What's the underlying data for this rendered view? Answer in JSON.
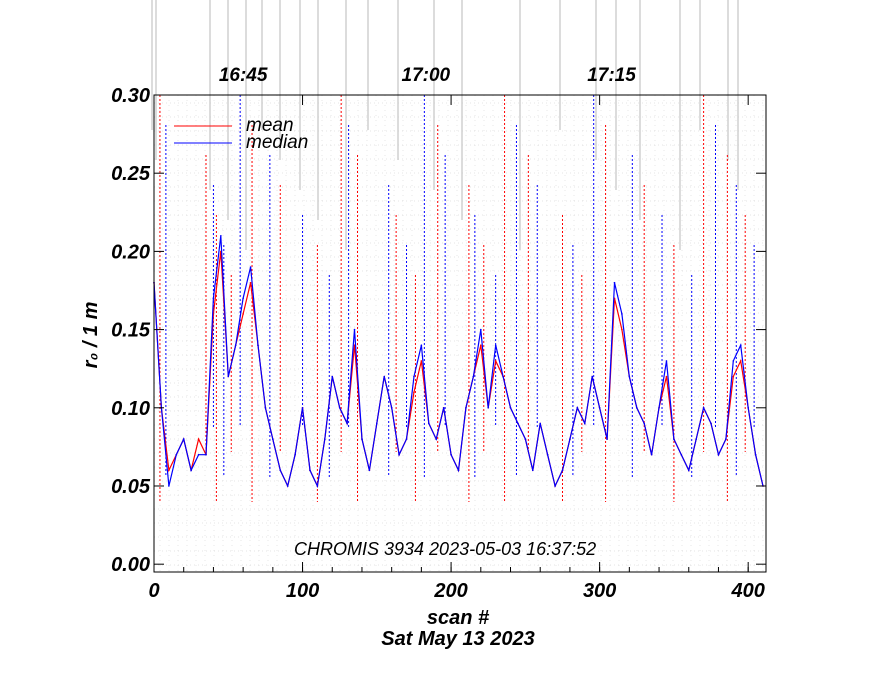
{
  "chart_data": {
    "type": "line",
    "title": "",
    "xlabel": "scan #",
    "ylabel": "r₀ / 1 m",
    "date_label": "Sat May 13 2023",
    "annotation": "CHROMIS 3934 2023-05-03 16:37:52",
    "xlim": [
      0,
      412
    ],
    "ylim": [
      -0.005,
      0.3
    ],
    "x_ticks": [
      0,
      100,
      200,
      300,
      400
    ],
    "x_tick_labels": [
      "0",
      "100",
      "200",
      "300",
      "400"
    ],
    "y_ticks": [
      0.0,
      0.05,
      0.1,
      0.15,
      0.2,
      0.25,
      0.3
    ],
    "y_tick_labels": [
      "0.00",
      "0.05",
      "0.10",
      "0.15",
      "0.20",
      "0.25",
      "0.30"
    ],
    "top_axis": {
      "labels": [
        "16:45",
        "17:00",
        "17:15"
      ],
      "at_scan": [
        60,
        183,
        308
      ]
    },
    "legend": {
      "placement": "top-left",
      "entries": [
        {
          "name": "mean",
          "color": "#ff0000"
        },
        {
          "name": "median",
          "color": "#0000ff"
        }
      ]
    },
    "series": [
      {
        "name": "mean",
        "color": "#ff0000",
        "x": [
          0,
          5,
          10,
          15,
          20,
          25,
          30,
          35,
          40,
          45,
          50,
          55,
          60,
          65,
          70,
          75,
          80,
          85,
          90,
          95,
          100,
          105,
          110,
          115,
          120,
          125,
          130,
          135,
          140,
          145,
          150,
          155,
          160,
          165,
          170,
          175,
          180,
          185,
          190,
          195,
          200,
          205,
          210,
          215,
          220,
          225,
          230,
          235,
          240,
          245,
          250,
          255,
          260,
          265,
          270,
          275,
          280,
          285,
          290,
          295,
          300,
          305,
          310,
          315,
          320,
          325,
          330,
          335,
          340,
          345,
          350,
          355,
          360,
          365,
          370,
          375,
          380,
          385,
          390,
          395,
          400,
          405,
          410
        ],
        "y": [
          0.18,
          0.1,
          0.06,
          0.07,
          0.08,
          0.06,
          0.08,
          0.07,
          0.16,
          0.2,
          0.12,
          0.14,
          0.16,
          0.18,
          0.14,
          0.1,
          0.08,
          0.06,
          0.05,
          0.07,
          0.1,
          0.06,
          0.05,
          0.08,
          0.12,
          0.1,
          0.09,
          0.14,
          0.08,
          0.06,
          0.09,
          0.12,
          0.1,
          0.07,
          0.08,
          0.11,
          0.13,
          0.09,
          0.08,
          0.1,
          0.07,
          0.06,
          0.1,
          0.12,
          0.14,
          0.1,
          0.13,
          0.12,
          0.1,
          0.09,
          0.08,
          0.06,
          0.09,
          0.07,
          0.05,
          0.06,
          0.08,
          0.1,
          0.09,
          0.12,
          0.1,
          0.08,
          0.17,
          0.15,
          0.12,
          0.1,
          0.09,
          0.07,
          0.1,
          0.12,
          0.08,
          0.07,
          0.06,
          0.08,
          0.1,
          0.09,
          0.07,
          0.08,
          0.12,
          0.13,
          0.1,
          0.07,
          0.05
        ]
      },
      {
        "name": "median",
        "color": "#0000ff",
        "x": [
          0,
          5,
          10,
          15,
          20,
          25,
          30,
          35,
          40,
          45,
          50,
          55,
          60,
          65,
          70,
          75,
          80,
          85,
          90,
          95,
          100,
          105,
          110,
          115,
          120,
          125,
          130,
          135,
          140,
          145,
          150,
          155,
          160,
          165,
          170,
          175,
          180,
          185,
          190,
          195,
          200,
          205,
          210,
          215,
          220,
          225,
          230,
          235,
          240,
          245,
          250,
          255,
          260,
          265,
          270,
          275,
          280,
          285,
          290,
          295,
          300,
          305,
          310,
          315,
          320,
          325,
          330,
          335,
          340,
          345,
          350,
          355,
          360,
          365,
          370,
          375,
          380,
          385,
          390,
          395,
          400,
          405,
          410
        ],
        "y": [
          0.18,
          0.1,
          0.05,
          0.07,
          0.08,
          0.06,
          0.07,
          0.07,
          0.17,
          0.21,
          0.12,
          0.14,
          0.17,
          0.19,
          0.14,
          0.1,
          0.08,
          0.06,
          0.05,
          0.07,
          0.1,
          0.06,
          0.05,
          0.08,
          0.12,
          0.1,
          0.09,
          0.15,
          0.08,
          0.06,
          0.09,
          0.12,
          0.1,
          0.07,
          0.08,
          0.12,
          0.14,
          0.09,
          0.08,
          0.1,
          0.07,
          0.06,
          0.1,
          0.12,
          0.15,
          0.1,
          0.14,
          0.12,
          0.1,
          0.09,
          0.08,
          0.06,
          0.09,
          0.07,
          0.05,
          0.06,
          0.08,
          0.1,
          0.09,
          0.12,
          0.1,
          0.08,
          0.18,
          0.16,
          0.12,
          0.1,
          0.09,
          0.07,
          0.1,
          0.13,
          0.08,
          0.07,
          0.06,
          0.08,
          0.1,
          0.09,
          0.07,
          0.08,
          0.13,
          0.14,
          0.1,
          0.07,
          0.05
        ]
      }
    ],
    "grid": true
  }
}
